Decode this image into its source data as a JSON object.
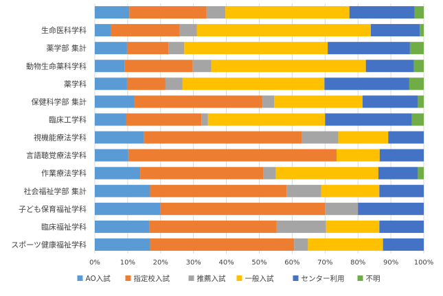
{
  "chart_data": {
    "type": "bar",
    "orientation": "horizontal",
    "stacked": "percent",
    "title": "",
    "xlabel": "",
    "ylabel": "",
    "xlim": [
      0,
      100
    ],
    "x_ticks": [
      "0%",
      "10%",
      "20%",
      "30%",
      "40%",
      "50%",
      "60%",
      "70%",
      "80%",
      "90%",
      "100%"
    ],
    "grid": "vertical",
    "legend": "bottom",
    "categories": [
      "",
      "生命医科学科",
      "薬学部 集計",
      "動物生命薬科学科",
      "薬学科",
      "保健科学部 集計",
      "臨床工学科",
      "視機能療法学科",
      "言語聴覚療法学科",
      "作業療法学科",
      "社会福祉学部 集計",
      "子ども保育福祉学科",
      "臨床福祉学科",
      "スポーツ健康福祉学科"
    ],
    "series": [
      {
        "name": "AO入試",
        "color": "#5b9bd5",
        "values": [
          10.5,
          4.8,
          9.8,
          9.0,
          9.8,
          12.0,
          9.6,
          15.0,
          10.2,
          13.8,
          16.8,
          20.0,
          16.5,
          16.8
        ]
      },
      {
        "name": "指定校入試",
        "color": "#ed7d31",
        "values": [
          23.5,
          21.0,
          12.6,
          20.8,
          11.6,
          39.0,
          22.8,
          48.0,
          63.3,
          37.5,
          41.5,
          50.0,
          38.8,
          43.8
        ]
      },
      {
        "name": "推薦入試",
        "color": "#a5a5a5",
        "values": [
          5.7,
          5.2,
          4.8,
          5.6,
          5.3,
          3.5,
          2.0,
          11.0,
          0,
          3.7,
          10.5,
          10.0,
          15.0,
          4.2
        ]
      },
      {
        "name": "一般入試",
        "color": "#ffc000",
        "values": [
          37.7,
          52.9,
          43.6,
          47.0,
          43.1,
          26.9,
          35.6,
          15.2,
          13.1,
          31.2,
          17.7,
          0,
          16.2,
          22.8
        ]
      },
      {
        "name": "センター利用",
        "color": "#4472c4",
        "values": [
          19.8,
          14.9,
          25.0,
          14.6,
          25.8,
          16.8,
          26.4,
          10.8,
          13.4,
          12.0,
          13.5,
          20.0,
          13.5,
          12.4
        ]
      },
      {
        "name": "不明",
        "color": "#70ad47",
        "values": [
          2.8,
          1.2,
          4.2,
          3.0,
          4.4,
          1.8,
          3.6,
          0,
          0,
          1.8,
          0,
          0,
          0,
          0
        ]
      }
    ]
  }
}
